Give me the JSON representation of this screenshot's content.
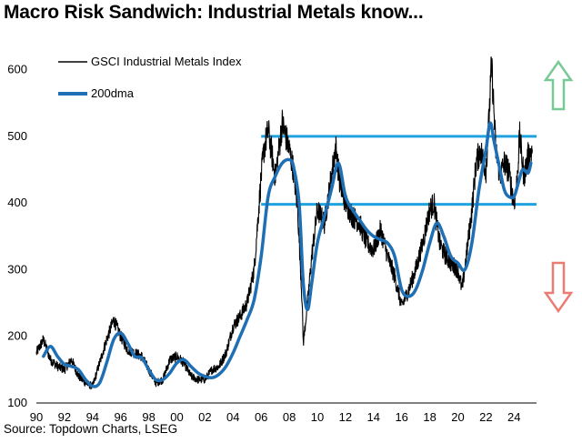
{
  "title": "Macro Risk Sandwich: Industrial Metals know...",
  "source": "Source: Topdown Charts, LSEG",
  "chart_data": {
    "type": "line",
    "title": "Macro Risk Sandwich: Industrial Metals know...",
    "xlabel": "",
    "ylabel": "",
    "xlim": [
      1990,
      2025.6
    ],
    "ylim": [
      100,
      650
    ],
    "x_ticks": [
      "90",
      "92",
      "94",
      "96",
      "98",
      "00",
      "02",
      "04",
      "06",
      "08",
      "10",
      "12",
      "14",
      "16",
      "18",
      "20",
      "22",
      "24"
    ],
    "y_ticks": [
      100,
      200,
      300,
      400,
      500,
      600
    ],
    "grid": false,
    "legend_position": "top-left",
    "horizontal_lines": [
      500,
      398
    ],
    "annotations": [
      "up-arrow",
      "down-arrow"
    ],
    "series": [
      {
        "name": "GSCI Industrial Metals Index",
        "color": "#000000",
        "x": [
          1990.0,
          1990.5,
          1991.0,
          1991.5,
          1992.0,
          1992.5,
          1993.0,
          1993.5,
          1994.0,
          1994.5,
          1995.0,
          1995.5,
          1996.0,
          1996.5,
          1997.0,
          1997.5,
          1998.0,
          1998.5,
          1999.0,
          1999.5,
          2000.0,
          2000.5,
          2001.0,
          2001.5,
          2002.0,
          2002.5,
          2003.0,
          2003.5,
          2004.0,
          2004.5,
          2005.0,
          2005.5,
          2006.0,
          2006.2,
          2006.5,
          2007.0,
          2007.2,
          2007.5,
          2008.0,
          2008.3,
          2008.6,
          2008.9,
          2009.0,
          2009.3,
          2009.6,
          2010.0,
          2010.5,
          2011.0,
          2011.3,
          2011.6,
          2012.0,
          2012.5,
          2013.0,
          2013.5,
          2014.0,
          2014.5,
          2015.0,
          2015.5,
          2016.0,
          2016.5,
          2017.0,
          2017.5,
          2018.0,
          2018.3,
          2018.7,
          2019.0,
          2019.5,
          2020.0,
          2020.3,
          2020.6,
          2021.0,
          2021.3,
          2021.6,
          2022.0,
          2022.2,
          2022.4,
          2022.7,
          2023.0,
          2023.3,
          2023.6,
          2024.0,
          2024.2,
          2024.4,
          2024.7,
          2025.0,
          2025.3
        ],
        "values": [
          175,
          195,
          165,
          155,
          150,
          165,
          140,
          130,
          125,
          160,
          195,
          225,
          200,
          180,
          175,
          170,
          150,
          130,
          135,
          165,
          170,
          160,
          140,
          135,
          135,
          150,
          155,
          175,
          215,
          230,
          250,
          300,
          440,
          480,
          510,
          440,
          470,
          520,
          480,
          450,
          390,
          260,
          190,
          250,
          320,
          390,
          370,
          440,
          485,
          430,
          400,
          380,
          370,
          340,
          330,
          360,
          320,
          290,
          245,
          270,
          300,
          340,
          390,
          400,
          340,
          325,
          310,
          300,
          270,
          320,
          390,
          460,
          480,
          450,
          520,
          610,
          480,
          440,
          460,
          450,
          400,
          430,
          500,
          440,
          470,
          480
        ],
        "role": "raw index (noisy monthly)"
      },
      {
        "name": "200dma",
        "color": "#1f6fb5",
        "x": [
          1990.5,
          1991.0,
          1991.5,
          1992.0,
          1992.5,
          1993.0,
          1993.5,
          1994.0,
          1994.5,
          1995.0,
          1995.5,
          1996.0,
          1996.5,
          1997.0,
          1997.5,
          1998.0,
          1998.5,
          1999.0,
          1999.5,
          2000.0,
          2000.5,
          2001.0,
          2001.5,
          2002.0,
          2002.5,
          2003.0,
          2003.5,
          2004.0,
          2004.5,
          2005.0,
          2005.5,
          2006.0,
          2006.5,
          2007.0,
          2007.5,
          2008.0,
          2008.3,
          2008.7,
          2009.0,
          2009.3,
          2009.6,
          2010.0,
          2010.5,
          2011.0,
          2011.5,
          2012.0,
          2012.5,
          2013.0,
          2013.5,
          2014.0,
          2014.5,
          2015.0,
          2015.5,
          2016.0,
          2016.5,
          2017.0,
          2017.5,
          2018.0,
          2018.5,
          2019.0,
          2019.5,
          2020.0,
          2020.5,
          2021.0,
          2021.5,
          2022.0,
          2022.3,
          2022.6,
          2023.0,
          2023.3,
          2023.6,
          2024.0,
          2024.3,
          2024.6,
          2025.0,
          2025.2
        ],
        "values": [
          170,
          185,
          170,
          158,
          155,
          150,
          135,
          125,
          130,
          160,
          195,
          205,
          190,
          170,
          168,
          150,
          135,
          135,
          145,
          160,
          165,
          155,
          145,
          140,
          138,
          143,
          155,
          175,
          200,
          225,
          255,
          320,
          410,
          440,
          460,
          465,
          455,
          400,
          280,
          240,
          280,
          340,
          380,
          420,
          460,
          410,
          390,
          375,
          360,
          350,
          345,
          340,
          320,
          270,
          260,
          270,
          300,
          340,
          370,
          350,
          320,
          310,
          300,
          340,
          420,
          480,
          520,
          490,
          450,
          420,
          410,
          410,
          430,
          450,
          445,
          460
        ]
      }
    ]
  },
  "legend": {
    "item_raw": "GSCI Industrial Metals Index",
    "item_dma": "200dma"
  },
  "colors": {
    "raw_line": "#000000",
    "dma_line": "#1f6fb5",
    "band_lines": "#1fa3e0",
    "up_arrow": "#79c996",
    "down_arrow": "#ec7b73"
  }
}
